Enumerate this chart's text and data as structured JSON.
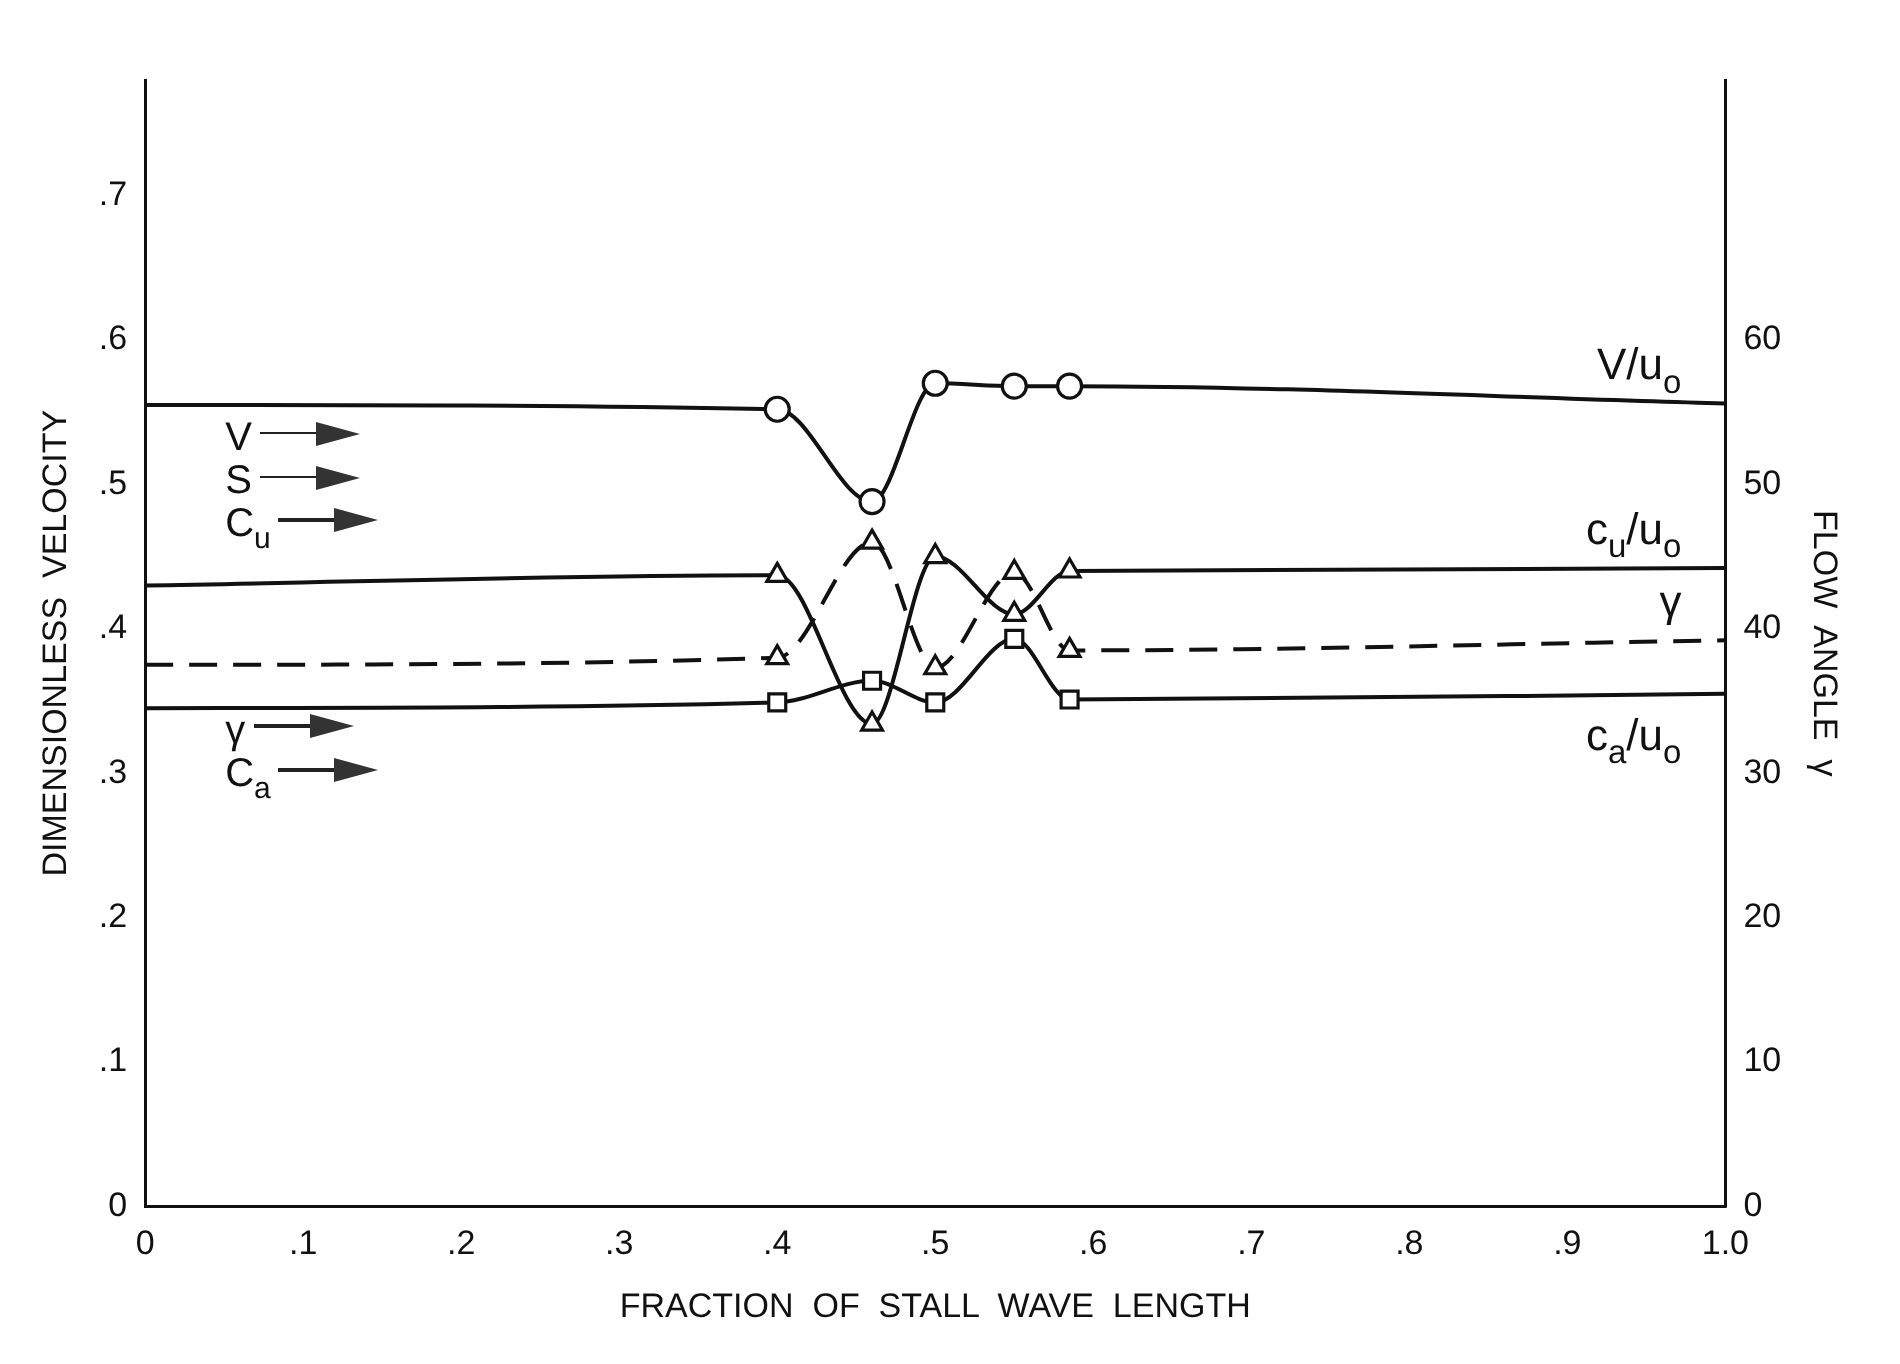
{
  "chart_data": {
    "type": "line",
    "xlabel": "FRACTION  OF  STALL  WAVE  LENGTH",
    "ylabel": "DIMENSIONLESS  VELOCITY",
    "y2label": "FLOW  ANGLE  γ",
    "xlim": [
      0,
      1
    ],
    "xticks": [
      0,
      {
        "value": 0.1,
        "label": ".1"
      },
      {
        "value": 0.2,
        "label": ".2"
      },
      {
        "value": 0.3,
        "label": ".3"
      },
      {
        "value": 0.4,
        "label": ".4"
      },
      {
        "value": 0.5,
        "label": ".5"
      },
      {
        "value": 0.6,
        "label": ".6"
      },
      {
        "value": 0.7,
        "label": ".7"
      },
      {
        "value": 0.8,
        "label": ".8"
      },
      {
        "value": 0.9,
        "label": ".9"
      },
      {
        "value": 1,
        "label": "1.0"
      }
    ],
    "ylim": [
      0,
      0.78
    ],
    "yticks": [
      0,
      {
        "value": 0.1,
        "label": ".1"
      },
      {
        "value": 0.2,
        "label": ".2"
      },
      {
        "value": 0.3,
        "label": ".3"
      },
      {
        "value": 0.4,
        "label": ".4"
      },
      {
        "value": 0.5,
        "label": ".5"
      },
      {
        "value": 0.6,
        "label": ".6"
      },
      {
        "value": 0.7,
        "label": ".7"
      }
    ],
    "y2lim": [
      0,
      78
    ],
    "y2ticks": [
      0,
      10,
      20,
      30,
      40,
      50,
      60
    ],
    "grid": false,
    "legend": false,
    "series": [
      {
        "name": "V/u$_{o}$",
        "color": "#111111",
        "marker": "circle",
        "line_style": "solid",
        "x": [
          0,
          0.4,
          0.46,
          0.5,
          0.55,
          0.585,
          1
        ],
        "values": [
          0.555,
          0.552,
          0.488,
          0.57,
          0.568,
          0.568,
          0.556
        ]
      },
      {
        "name": "c$_{u}$/u$_{o}$",
        "color": "#111111",
        "marker": "triangle",
        "line_style": "solid",
        "x": [
          0,
          0.4,
          0.46,
          0.5,
          0.55,
          0.585,
          1
        ],
        "values": [
          0.43,
          0.437,
          0.334,
          0.45,
          0.41,
          0.44,
          0.442
        ]
      },
      {
        "name": "γ",
        "color": "#111111",
        "marker": "triangle",
        "line_style": "dashed",
        "axis": "y2",
        "x": [
          0,
          0.4,
          0.46,
          0.5,
          0.55,
          0.585,
          1
        ],
        "values": [
          37.5,
          38,
          46,
          37.3,
          43.9,
          38.5,
          39.2
        ]
      },
      {
        "name": "c$_{a}$/u$_{o}$",
        "color": "#111111",
        "marker": "square",
        "line_style": "solid",
        "x": [
          0,
          0.4,
          0.46,
          0.5,
          0.55,
          0.585,
          1
        ],
        "values": [
          0.345,
          0.349,
          0.364,
          0.349,
          0.393,
          0.351,
          0.355
        ]
      }
    ],
    "annotations": [
      "V",
      "S",
      "C$_{u}$",
      "γ",
      "C$_{a}$"
    ]
  }
}
